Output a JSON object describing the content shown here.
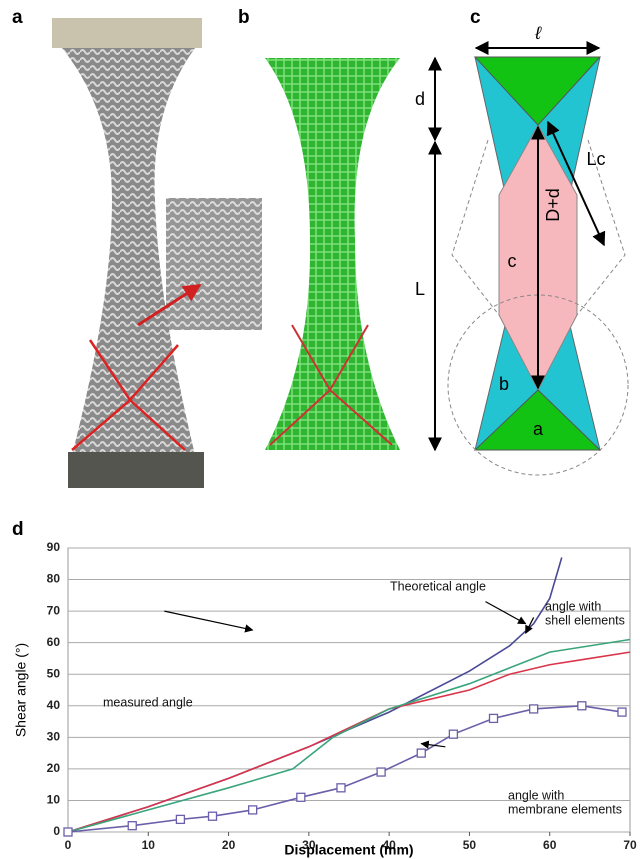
{
  "panels": {
    "a": "a",
    "b": "b",
    "c": "c",
    "d": "d"
  },
  "diagram": {
    "width": "ℓ",
    "top": "d",
    "length": "L",
    "diagonal": "D+d",
    "side": "Lc",
    "zone_c": "c",
    "zone_b": "b",
    "zone_a": "a"
  },
  "chart_data": {
    "type": "line",
    "xlabel": "Displacement (mm)",
    "ylabel": "Shear angle (°)",
    "xlim": [
      0,
      70
    ],
    "xticks": [
      0,
      10,
      20,
      30,
      40,
      50,
      60,
      70
    ],
    "ylim": [
      0,
      90
    ],
    "yticks": [
      0,
      10,
      20,
      30,
      40,
      50,
      60,
      70,
      80,
      90
    ],
    "grid": true,
    "series": [
      {
        "color": "#4a4a96",
        "marker": "none",
        "x": [
          0,
          10,
          20,
          30,
          40,
          50,
          55,
          58,
          60,
          61.5
        ],
        "values": [
          0,
          8,
          17,
          27,
          38,
          51,
          59,
          66,
          74,
          87
        ]
      },
      {
        "color": "#d9344a",
        "marker": "none",
        "x": [
          0,
          10,
          20,
          30,
          40,
          50,
          55,
          60,
          65,
          70
        ],
        "values": [
          0,
          8,
          17,
          27,
          39,
          45,
          50,
          53,
          55,
          57
        ]
      },
      {
        "color": "#3aa57c",
        "marker": "none",
        "x": [
          0,
          10,
          20,
          28,
          33,
          40,
          50,
          55,
          60,
          70
        ],
        "values": [
          0,
          7,
          14,
          20,
          30,
          39,
          47,
          52,
          57,
          61
        ]
      },
      {
        "color": "#6a5fa8",
        "marker": "square",
        "x": [
          0,
          8,
          14,
          18,
          23,
          29,
          34,
          39,
          44,
          48,
          53,
          58,
          64,
          69
        ],
        "values": [
          0,
          2,
          4,
          5,
          7,
          11,
          14,
          19,
          25,
          31,
          36,
          39,
          40,
          38
        ]
      }
    ],
    "annotations": [
      {
        "lines": [
          "Theoretical angle"
        ]
      },
      {
        "lines": [
          "measured angle"
        ]
      },
      {
        "lines": [
          "angle with",
          "shell elements"
        ]
      },
      {
        "lines": [
          "angle with",
          "membrane elements"
        ]
      }
    ]
  }
}
